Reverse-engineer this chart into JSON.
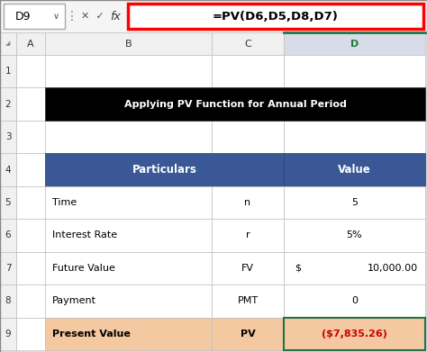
{
  "formula_bar_cell": "D9",
  "formula_bar_formula": "=PV(D6,D5,D8,D7)",
  "title": "Applying PV Function for Annual Period",
  "title_bg": "#000000",
  "title_color": "#FFFFFF",
  "header_bg": "#3A5796",
  "header_color": "#FFFFFF",
  "rows": [
    {
      "particular": "Time",
      "symbol": "n",
      "value": "5",
      "bold": false,
      "row_bg": "#FFFFFF"
    },
    {
      "particular": "Interest Rate",
      "symbol": "r",
      "value": "5%",
      "bold": false,
      "row_bg": "#FFFFFF"
    },
    {
      "particular": "Future Value",
      "symbol": "FV",
      "value": "$   10,000.00",
      "bold": false,
      "row_bg": "#FFFFFF"
    },
    {
      "particular": "Payment",
      "symbol": "PMT",
      "value": "0",
      "bold": false,
      "row_bg": "#FFFFFF"
    },
    {
      "particular": "Present Value",
      "symbol": "PV",
      "value": "($7,835.26)",
      "bold": true,
      "row_bg": "#F4C8A0"
    }
  ],
  "pv_value_color": "#CC0000",
  "formula_box_border": "#FF0000",
  "sheet_bg": "#F0F0F0",
  "row_header_bg": "#E8E8E8",
  "col_d_header_bg": "#D8DCE8",
  "col_d_header_color": "#1E7A3C",
  "grid_color": "#C0C0C0",
  "formula_bar_bg": "#F5F5F5",
  "cell_bg": "#FFFFFF",
  "row_num_bg": "#F0F0F0",
  "col_hdr_bg": "#F0F0F0",
  "highlight_d_border": "#217346",
  "fv_dollar": "$",
  "fv_amount": "10,000.00"
}
